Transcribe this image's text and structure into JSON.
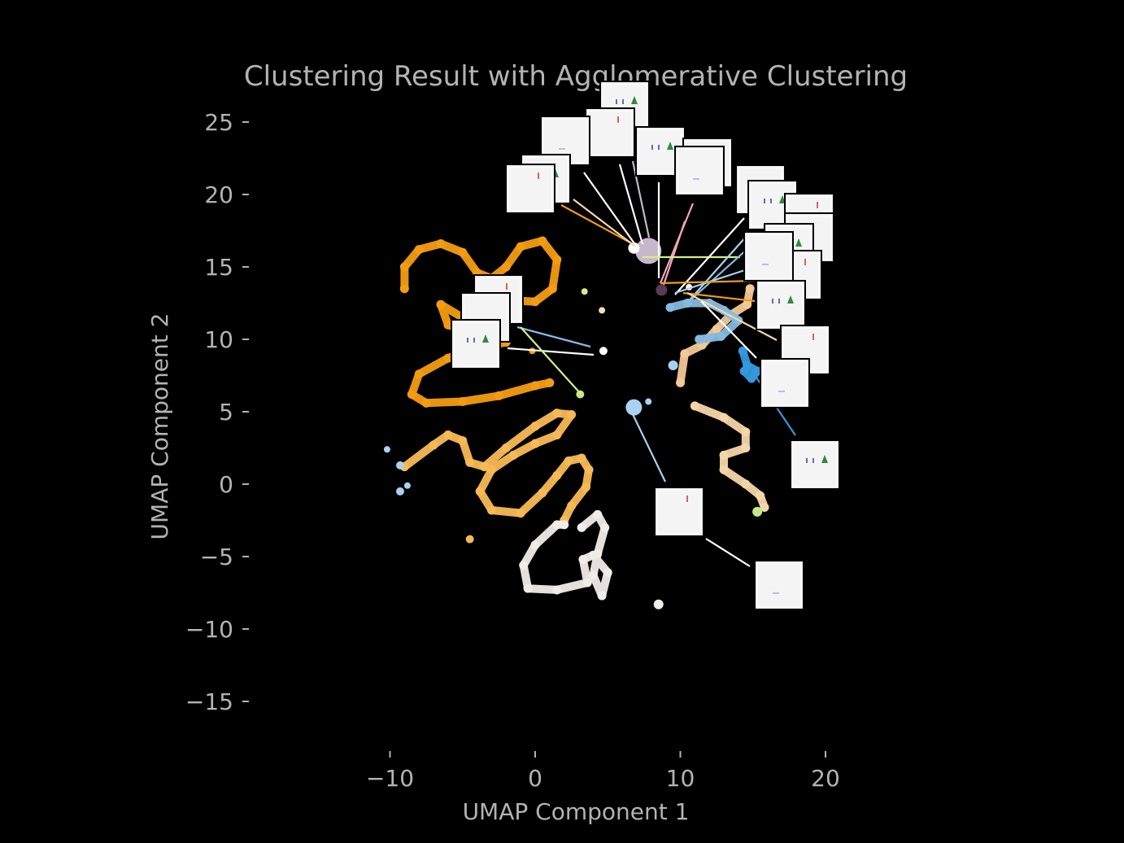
{
  "chart_data": {
    "type": "scatter",
    "title": "Clustering Result with Agglomerative Clustering",
    "xlabel": "UMAP Component 1",
    "ylabel": "UMAP Component 2",
    "xlim": [
      -19.7,
      30.8
    ],
    "ylim": [
      -18.5,
      26.5
    ],
    "xticks": [
      -10,
      0,
      10,
      20
    ],
    "yticks": [
      -15,
      -10,
      -5,
      0,
      5,
      10,
      15,
      20,
      25
    ],
    "xtick_labels": [
      "−10",
      "0",
      "10",
      "20"
    ],
    "ytick_labels": [
      "−15",
      "−10",
      "−5",
      "0",
      "5",
      "10",
      "15",
      "20",
      "25"
    ],
    "grid": false,
    "legend": "none",
    "background": "#000000",
    "text_color": "#b3b3b3",
    "series": [
      {
        "color": "#f39c12",
        "curve": [
          [
            -9,
            13.5
          ],
          [
            -9,
            15
          ],
          [
            -8,
            16.2
          ],
          [
            -6.5,
            16.6
          ],
          [
            -5,
            16
          ],
          [
            -4,
            14.6
          ],
          [
            -3,
            14.2
          ],
          [
            -2,
            15
          ],
          [
            -1,
            16.4
          ],
          [
            0.5,
            16.8
          ],
          [
            1.5,
            15.5
          ],
          [
            1.2,
            13.5
          ],
          [
            0,
            12.6
          ],
          [
            -2,
            12.7
          ],
          [
            -4,
            12.3
          ],
          [
            -5,
            11.5
          ],
          [
            -6.5,
            12.4
          ],
          [
            -6,
            11
          ],
          [
            -4,
            10.2
          ],
          [
            -2,
            9.8
          ],
          [
            -4.5,
            9.3
          ],
          [
            -6,
            8.7
          ],
          [
            -8,
            7.6
          ],
          [
            -8.5,
            6.2
          ],
          [
            -7.5,
            5.6
          ],
          [
            -5,
            5.7
          ],
          [
            -2.5,
            6.1
          ],
          [
            0,
            6.8
          ],
          [
            1,
            7
          ]
        ]
      },
      {
        "color": "#f7b955",
        "curve": [
          [
            -9,
            1.2
          ],
          [
            -7,
            2.7
          ],
          [
            -6,
            3.4
          ],
          [
            -5,
            3
          ],
          [
            -4.5,
            1.5
          ],
          [
            -3.5,
            1.2
          ],
          [
            -2,
            2.5
          ],
          [
            0,
            4
          ],
          [
            1.5,
            4.9
          ],
          [
            2.5,
            4.8
          ],
          [
            1.5,
            3.4
          ],
          [
            0,
            2.8
          ],
          [
            -1.5,
            2
          ],
          [
            -3,
            1
          ],
          [
            -3.8,
            -0.5
          ],
          [
            -3,
            -1.8
          ],
          [
            -1,
            -2
          ],
          [
            0.5,
            -0.6
          ],
          [
            1.5,
            0.6
          ],
          [
            2.3,
            1.6
          ],
          [
            3.2,
            1.8
          ],
          [
            3.7,
            1
          ],
          [
            3.5,
            -0.2
          ],
          [
            2.5,
            -1.5
          ],
          [
            2,
            -2.5
          ]
        ]
      },
      {
        "color": "#f5d6a8",
        "curve": [
          [
            11,
            5.4
          ],
          [
            13,
            4.6
          ],
          [
            14.5,
            3.6
          ],
          [
            14.5,
            2.5
          ],
          [
            13,
            2
          ],
          [
            13,
            1
          ],
          [
            14.5,
            0
          ],
          [
            15.5,
            -0.8
          ],
          [
            15.8,
            -1.6
          ]
        ]
      },
      {
        "color": "#f2ece8",
        "curve": [
          [
            3.2,
            -3
          ],
          [
            4.3,
            -2.1
          ],
          [
            4.8,
            -3
          ],
          [
            4.3,
            -4.8
          ],
          [
            4,
            -6.3
          ],
          [
            4.6,
            -7.7
          ],
          [
            5,
            -6.1
          ],
          [
            4,
            -4.9
          ],
          [
            3.3,
            -5.2
          ],
          [
            3.6,
            -6.8
          ],
          [
            1.5,
            -7.3
          ],
          [
            -0.5,
            -7.2
          ],
          [
            -0.8,
            -5.6
          ],
          [
            0,
            -4.2
          ],
          [
            1.5,
            -2.8
          ],
          [
            2,
            -2.8
          ]
        ]
      },
      {
        "color": "#f1c896",
        "curve": [
          [
            10,
            7
          ],
          [
            10.3,
            9
          ],
          [
            11.5,
            9.6
          ],
          [
            12.5,
            10.7
          ],
          [
            13.5,
            11.7
          ],
          [
            14.6,
            12.4
          ],
          [
            14.8,
            13.5
          ]
        ]
      },
      {
        "color": "#85b9e0",
        "curve": [
          [
            9.3,
            12.2
          ],
          [
            10.5,
            12.5
          ],
          [
            12,
            12.5
          ],
          [
            13,
            12
          ],
          [
            14,
            11.3
          ],
          [
            12.8,
            10.2
          ],
          [
            11.3,
            10
          ]
        ]
      },
      {
        "color": "#3498db",
        "curve": [
          [
            14.3,
            9.2
          ],
          [
            14.6,
            8.2
          ],
          [
            15.3,
            7.8
          ],
          [
            14.9,
            7.3
          ],
          [
            14.4,
            7.8
          ]
        ]
      }
    ],
    "points": [
      {
        "x": 7.8,
        "y": 16.1,
        "color": "#c8b6cc",
        "size": 16
      },
      {
        "x": 6.8,
        "y": 16.3,
        "color": "#ffffff",
        "size": 7
      },
      {
        "x": 8.7,
        "y": 13.4,
        "color": "#5b3a55",
        "size": 7
      },
      {
        "x": 10.6,
        "y": 13.6,
        "color": "#ffffff",
        "size": 4
      },
      {
        "x": 3.4,
        "y": 13.3,
        "color": "#d0f088",
        "size": 4
      },
      {
        "x": 4.6,
        "y": 12,
        "color": "#f3dec0",
        "size": 4
      },
      {
        "x": 4.7,
        "y": 9.2,
        "color": "#ffffff",
        "size": 5
      },
      {
        "x": -0.2,
        "y": 9.2,
        "color": "#f39c12",
        "size": 4
      },
      {
        "x": 3.1,
        "y": 6.2,
        "color": "#c5e887",
        "size": 5
      },
      {
        "x": 6.8,
        "y": 5.3,
        "color": "#a9d1f0",
        "size": 10
      },
      {
        "x": 7.8,
        "y": 5.7,
        "color": "#a9d1f0",
        "size": 4
      },
      {
        "x": 9.5,
        "y": 8.2,
        "color": "#a9d1f0",
        "size": 6
      },
      {
        "x": -10.2,
        "y": 2.4,
        "color": "#a9d1f0",
        "size": 4
      },
      {
        "x": -9.3,
        "y": 1.3,
        "color": "#a9d1f0",
        "size": 5
      },
      {
        "x": -9.3,
        "y": -0.5,
        "color": "#a9d1f0",
        "size": 5
      },
      {
        "x": -8.8,
        "y": -0.1,
        "color": "#a9d1f0",
        "size": 4
      },
      {
        "x": 15.3,
        "y": -1.9,
        "color": "#c5e887",
        "size": 6
      },
      {
        "x": -4.5,
        "y": -3.8,
        "color": "#f7b955",
        "size": 5
      },
      {
        "x": 8.5,
        "y": -8.3,
        "color": "#f2ece8",
        "size": 6
      }
    ],
    "thumbnails": 26,
    "connector_colors": [
      "#f5d6a8",
      "#ffffff",
      "#c8b6cc",
      "#f4a7b9",
      "#d0f088",
      "#a9d1f0",
      "#3498db",
      "#85b9e0",
      "#f39c12",
      "#f2ece8"
    ]
  }
}
